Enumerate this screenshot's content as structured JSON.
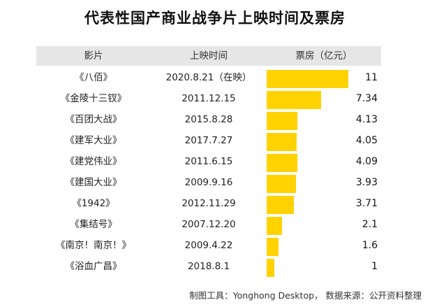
{
  "title": "代表性国产商业战争片上映时间及票房",
  "footer": "制图工具：Yonghong Desktop， 数据来源：公开资料整理",
  "colors": {
    "bar": "#FFD200",
    "header_bg": "#e6e6e6"
  },
  "chart_data": {
    "type": "bar",
    "orientation": "horizontal",
    "columns": [
      "影片",
      "上映时间",
      "票房（亿元）"
    ],
    "categories": [
      "《八佰》",
      "《金陵十三钗》",
      "《百团大战》",
      "《建军大业》",
      "《建党伟业》",
      "《建国大业》",
      "《1942》",
      "《集结号》",
      "《南京！南京！》",
      "《浴血广昌》"
    ],
    "dates": [
      "2020.8.21（在映）",
      "2011.12.15",
      "2015.8.28",
      "2017.7.27",
      "2011.6.15",
      "2009.9.16",
      "2012.11.29",
      "2007.12.20",
      "2009.4.22",
      "2018.8.1"
    ],
    "values": [
      11,
      7.34,
      4.13,
      4.05,
      4.09,
      3.93,
      3.71,
      2.1,
      1.6,
      1
    ],
    "value_labels": [
      "11",
      "7.34",
      "4.13",
      "4.05",
      "4.09",
      "3.93",
      "3.71",
      "2.1",
      "1.6",
      "1"
    ],
    "xlim": [
      0,
      11
    ],
    "grid": false,
    "legend": "none"
  }
}
